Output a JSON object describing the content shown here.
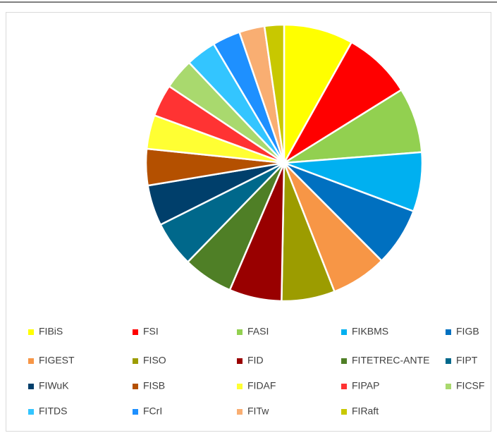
{
  "chart_data": {
    "type": "pie",
    "categories": [
      "FIBiS",
      "FSI",
      "FASI",
      "FIKBMS",
      "FIGB",
      "FIGEST",
      "FISO",
      "FID",
      "FITETREC-ANTE",
      "FIPT",
      "FIWuK",
      "FISB",
      "FIDAF",
      "FIPAP",
      "FICSF",
      "FITDS",
      "FCrI",
      "FITw",
      "FIRaft"
    ],
    "values": [
      8.2,
      8.1,
      7.7,
      7.0,
      6.9,
      6.6,
      6.3,
      6.2,
      5.9,
      5.4,
      4.8,
      4.3,
      4.0,
      3.8,
      3.6,
      3.6,
      3.3,
      3.0,
      2.3
    ],
    "colors": [
      "#ffff00",
      "#ff0000",
      "#92d050",
      "#00b0f0",
      "#0070c0",
      "#f79646",
      "#9c9c00",
      "#990000",
      "#4f7f26",
      "#00688b",
      "#003f6b",
      "#b45000",
      "#ffff33",
      "#ff3333",
      "#a9d96e",
      "#33c5ff",
      "#1e90ff",
      "#f9ae72",
      "#c8c800"
    ],
    "legend": "bottom"
  }
}
